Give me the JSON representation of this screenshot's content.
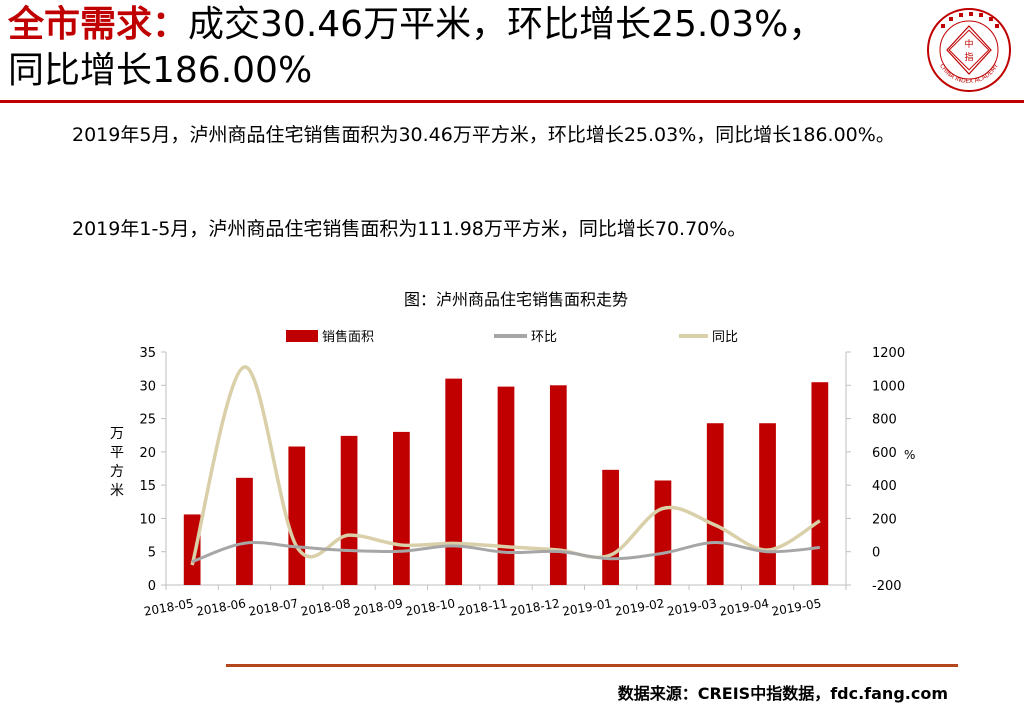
{
  "header": {
    "title_prefix": "全市需求：",
    "title_main": "成交30.46万平米，环比增长25.03%，",
    "title_line2": "同比增长186.00%",
    "logo_center_char_top": "中",
    "logo_center_char_bottom": "指",
    "logo_arc_text": "CHINA INDEX ACADEMY"
  },
  "body": {
    "paragraph1": "2019年5月，泸州商品住宅销售面积为30.46万平方米，环比增长25.03%，同比增长186.00%。",
    "paragraph2": "2019年1-5月，泸州商品住宅销售面积为111.98万平方米，同比增长70.70%。"
  },
  "footer": {
    "source": "数据来源：CREIS中指数据，fdc.fang.com"
  },
  "colors": {
    "accent": "#c00000",
    "mom_line": "#a6a6a6",
    "yoy_line": "#d9cfa8",
    "bottom_rule": "#b5451b"
  },
  "chart_data": {
    "type": "bar",
    "title": "图：泸州商品住宅销售面积走势",
    "categories": [
      "2018-05",
      "2018-06",
      "2018-07",
      "2018-08",
      "2018-09",
      "2018-10",
      "2018-11",
      "2018-12",
      "2019-01",
      "2019-02",
      "2019-03",
      "2019-04",
      "2019-05"
    ],
    "series": [
      {
        "name": "销售面积",
        "type": "bar",
        "axis": "left",
        "values": [
          10.6,
          16.1,
          20.8,
          22.4,
          23.0,
          31.0,
          29.8,
          30.0,
          17.3,
          15.7,
          24.3,
          24.3,
          30.46
        ]
      },
      {
        "name": "环比",
        "type": "line",
        "axis": "right",
        "values": [
          -60,
          51,
          29,
          7,
          3,
          35,
          -4,
          1,
          -42,
          -9,
          55,
          0,
          25.03
        ]
      },
      {
        "name": "同比",
        "type": "line",
        "axis": "right",
        "values": [
          -80,
          1110,
          30,
          100,
          40,
          50,
          30,
          10,
          -20,
          260,
          160,
          10,
          186
        ]
      }
    ],
    "ylabel": "万平方米",
    "y2label": "%",
    "ylim": [
      0,
      35
    ],
    "y2lim": [
      -200,
      1200
    ],
    "yticks": [
      0,
      5,
      10,
      15,
      20,
      25,
      30,
      35
    ],
    "y2ticks": [
      -200,
      0,
      200,
      400,
      600,
      800,
      1000,
      1200
    ],
    "grid": false,
    "legend_position": "top"
  }
}
